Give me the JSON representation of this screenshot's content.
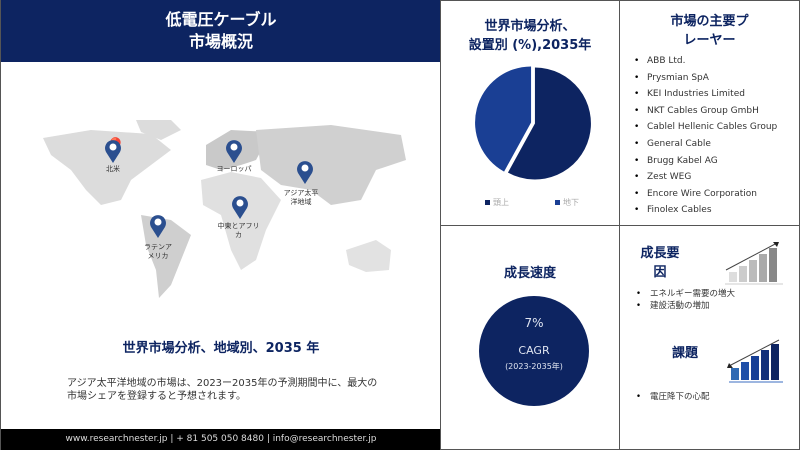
{
  "header": {
    "title_line1": "低電圧ケーブル",
    "title_line2": "市場概況"
  },
  "map": {
    "regions": [
      {
        "label": "北米"
      },
      {
        "label": "ヨーロッパ"
      },
      {
        "label": "アジア太平洋地域"
      },
      {
        "label": "中東とアフリカ"
      },
      {
        "label": "ラテンアメリカ"
      }
    ],
    "pin_color": "#2b4f8f",
    "land_color": "#d9d9d9"
  },
  "regional": {
    "title": "世界市場分析、地域別、2035 年",
    "description": "アジア太平洋地域の市場は、2023ー2035年の予測期間中に、最大の市場シェアを登録すると予想されます。"
  },
  "footer": {
    "contact": "www.researchnester.jp | + 81 505 050 8480 | info@researchnester.jp"
  },
  "segment": {
    "title_line1": "世界市場分析、",
    "title_line2": "設置別 (%),2035年"
  },
  "chart_data": {
    "type": "pie",
    "categories": [
      "頭上",
      "地下"
    ],
    "values": [
      58,
      42
    ],
    "colors": [
      "#0d2461",
      "#1a3f94"
    ],
    "legend": "bottom"
  },
  "players": {
    "title_line1": "市場の主要プ",
    "title_line2": "レーヤー",
    "items": [
      "ABB Ltd.",
      "Prysmian SpA",
      "KEI Industries Limited",
      "NKT Cables Group GmbH",
      "Cablel Hellenic Cables Group",
      "General Cable",
      "Brugg Kabel AG",
      "Zest WEG",
      "Encore Wire Corporation",
      "Finolex Cables"
    ]
  },
  "growth": {
    "title": "成長速度",
    "value": "7%",
    "label": "CAGR",
    "period": "(2023-2035年)"
  },
  "drivers": {
    "title_line1": "成長要",
    "title_line2": "因",
    "items": [
      "エネルギー需要の増大",
      "建設活動の増加"
    ]
  },
  "challenges": {
    "title": "課題",
    "items": [
      "電圧降下の心配"
    ]
  }
}
